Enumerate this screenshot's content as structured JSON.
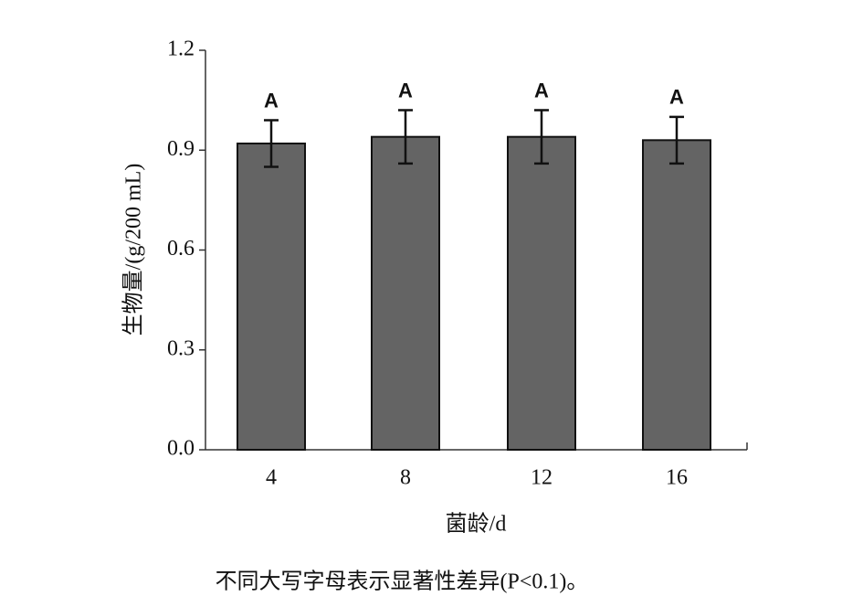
{
  "chart_data": {
    "type": "bar",
    "categories": [
      "4",
      "8",
      "12",
      "16"
    ],
    "values": [
      0.92,
      0.94,
      0.94,
      0.93
    ],
    "errors": [
      0.07,
      0.08,
      0.08,
      0.07
    ],
    "significance_labels": [
      "A",
      "A",
      "A",
      "A"
    ],
    "color": "#646464",
    "ylim": [
      0,
      1.2
    ],
    "yticks": [
      {
        "value": 0,
        "label": "0.0"
      },
      0.3,
      0.6,
      0.9,
      1.2
    ],
    "y_label": "生物量/(g/200 mL)",
    "x_label": "菌龄/d",
    "caption": "不同大写字母表示显著性差异(P<0.1)。"
  }
}
